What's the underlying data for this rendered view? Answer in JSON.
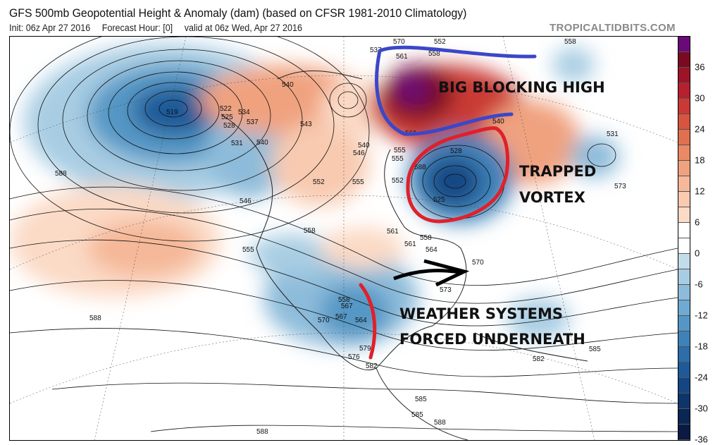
{
  "header": {
    "title": "GFS 500mb Geopotential Height & Anomaly (dam) (based on CFSR 1981-2010 Climatology)",
    "init": "Init: 06z Apr 27 2016",
    "forecast_hour": "Forecast Hour: [0]",
    "valid": "valid at 06z Wed, Apr 27 2016",
    "brand": "TROPICALTIDBITS.COM"
  },
  "annotations": {
    "blocking_high": "BIG BLOCKING HIGH",
    "vortex_line1": "TRAPPED",
    "vortex_line2": "VORTEX",
    "systems_line1": "WEATHER SYSTEMS",
    "systems_line2": "FORCED UNDERNEATH",
    "blocking_outline_color": "#3b47c8",
    "vortex_outline_color": "#e0202a",
    "arrow_color": "#000000"
  },
  "contour_labels": [
    "519",
    "522",
    "525",
    "528",
    "531",
    "534",
    "537",
    "540",
    "546",
    "537",
    "540",
    "543",
    "540",
    "546",
    "552",
    "555",
    "552",
    "555",
    "558",
    "561",
    "555",
    "558",
    "561",
    "564",
    "567",
    "570",
    "573",
    "570",
    "567",
    "564",
    "558",
    "576",
    "579",
    "582",
    "585",
    "588",
    "588",
    "588",
    "585",
    "588",
    "588",
    "582",
    "585",
    "570",
    "573",
    "558",
    "561",
    "552",
    "555",
    "558",
    "528",
    "525",
    "531",
    "561",
    "540"
  ],
  "colorbar": {
    "ticks": [
      "36",
      "30",
      "24",
      "18",
      "12",
      "6",
      "0",
      "-6",
      "-12",
      "-18",
      "-24",
      "-30",
      "-36"
    ],
    "colors": [
      "#6a0a78",
      "#7a0a22",
      "#9c1428",
      "#b5212e",
      "#c93a36",
      "#d65440",
      "#e0704f",
      "#e98a65",
      "#f0a27f",
      "#f5b898",
      "#f8cab0",
      "#fbdac6",
      "#ffffff",
      "#ffffff",
      "#c3dcea",
      "#a8cde3",
      "#8dbcda",
      "#6eaad1",
      "#5497c5",
      "#3e82b9",
      "#2c6daa",
      "#1f5a98",
      "#154683",
      "#0e356a",
      "#0a2653",
      "#0a1a45"
    ]
  }
}
